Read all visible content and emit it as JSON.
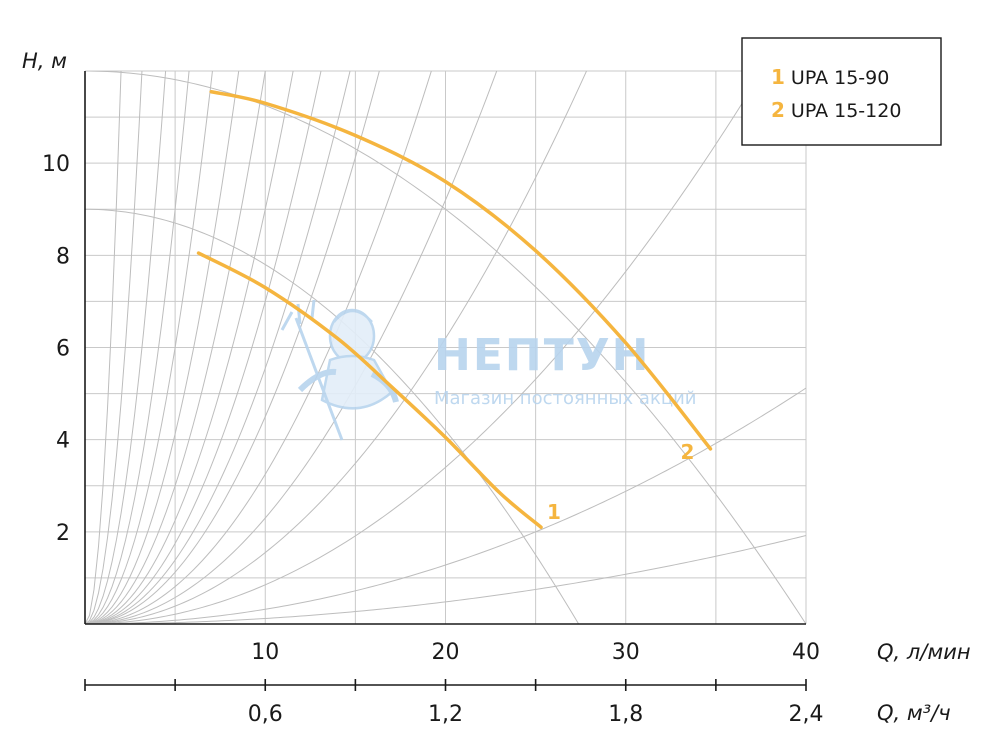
{
  "chart_data": {
    "type": "line",
    "x": {
      "label": "Q, л/мин",
      "range": [
        0,
        40
      ],
      "ticks": [
        10,
        20,
        30,
        40
      ],
      "tick_labels": [
        "10",
        "20",
        "30",
        "40"
      ]
    },
    "x2": {
      "label": "Q, м³/ч",
      "range": [
        0,
        2.4
      ],
      "ticks": [
        0.6,
        1.2,
        1.8,
        2.4
      ],
      "tick_labels": [
        "0,6",
        "1,2",
        "1,8",
        "2,4"
      ]
    },
    "y": {
      "label": "H, м",
      "range": [
        0,
        12
      ],
      "ticks": [
        2,
        4,
        6,
        8,
        10
      ],
      "tick_labels": [
        "2",
        "4",
        "6",
        "8",
        "10"
      ]
    },
    "grid": true,
    "series": [
      {
        "name": "UPA 15-90",
        "tag": "1",
        "color": "#f5b53f",
        "x": [
          6.3,
          10,
          14,
          17,
          20,
          23,
          25.3
        ],
        "y": [
          8.05,
          7.3,
          6.2,
          5.15,
          4.05,
          2.85,
          2.1
        ]
      },
      {
        "name": "UPA 15-120",
        "tag": "2",
        "color": "#f5b53f",
        "x": [
          7,
          10,
          15,
          20,
          25,
          30,
          34.7
        ],
        "y": [
          11.55,
          11.3,
          10.6,
          9.6,
          8.1,
          6.1,
          3.8
        ]
      }
    ],
    "system_curves": [
      {
        "a": 9,
        "b": 0.012
      },
      {
        "a": 12,
        "b": 0.0075
      }
    ],
    "resistance_curves_k": [
      3.0,
      1.2,
      0.6,
      0.36,
      0.24,
      0.165,
      0.12,
      0.09,
      0.07,
      0.0555,
      0.045,
      0.0325,
      0.023,
      0.0155,
      0.0085,
      0.0032,
      0.0012
    ],
    "legend": {
      "position": "top-right",
      "items": [
        {
          "tag": "1",
          "label": "UPA 15-90"
        },
        {
          "tag": "2",
          "label": "UPA 15-120"
        }
      ]
    },
    "watermark": {
      "title": "НЕПТУН",
      "subtitle": "Магазин постоянных акций",
      "color": "#b8d4ee"
    }
  }
}
